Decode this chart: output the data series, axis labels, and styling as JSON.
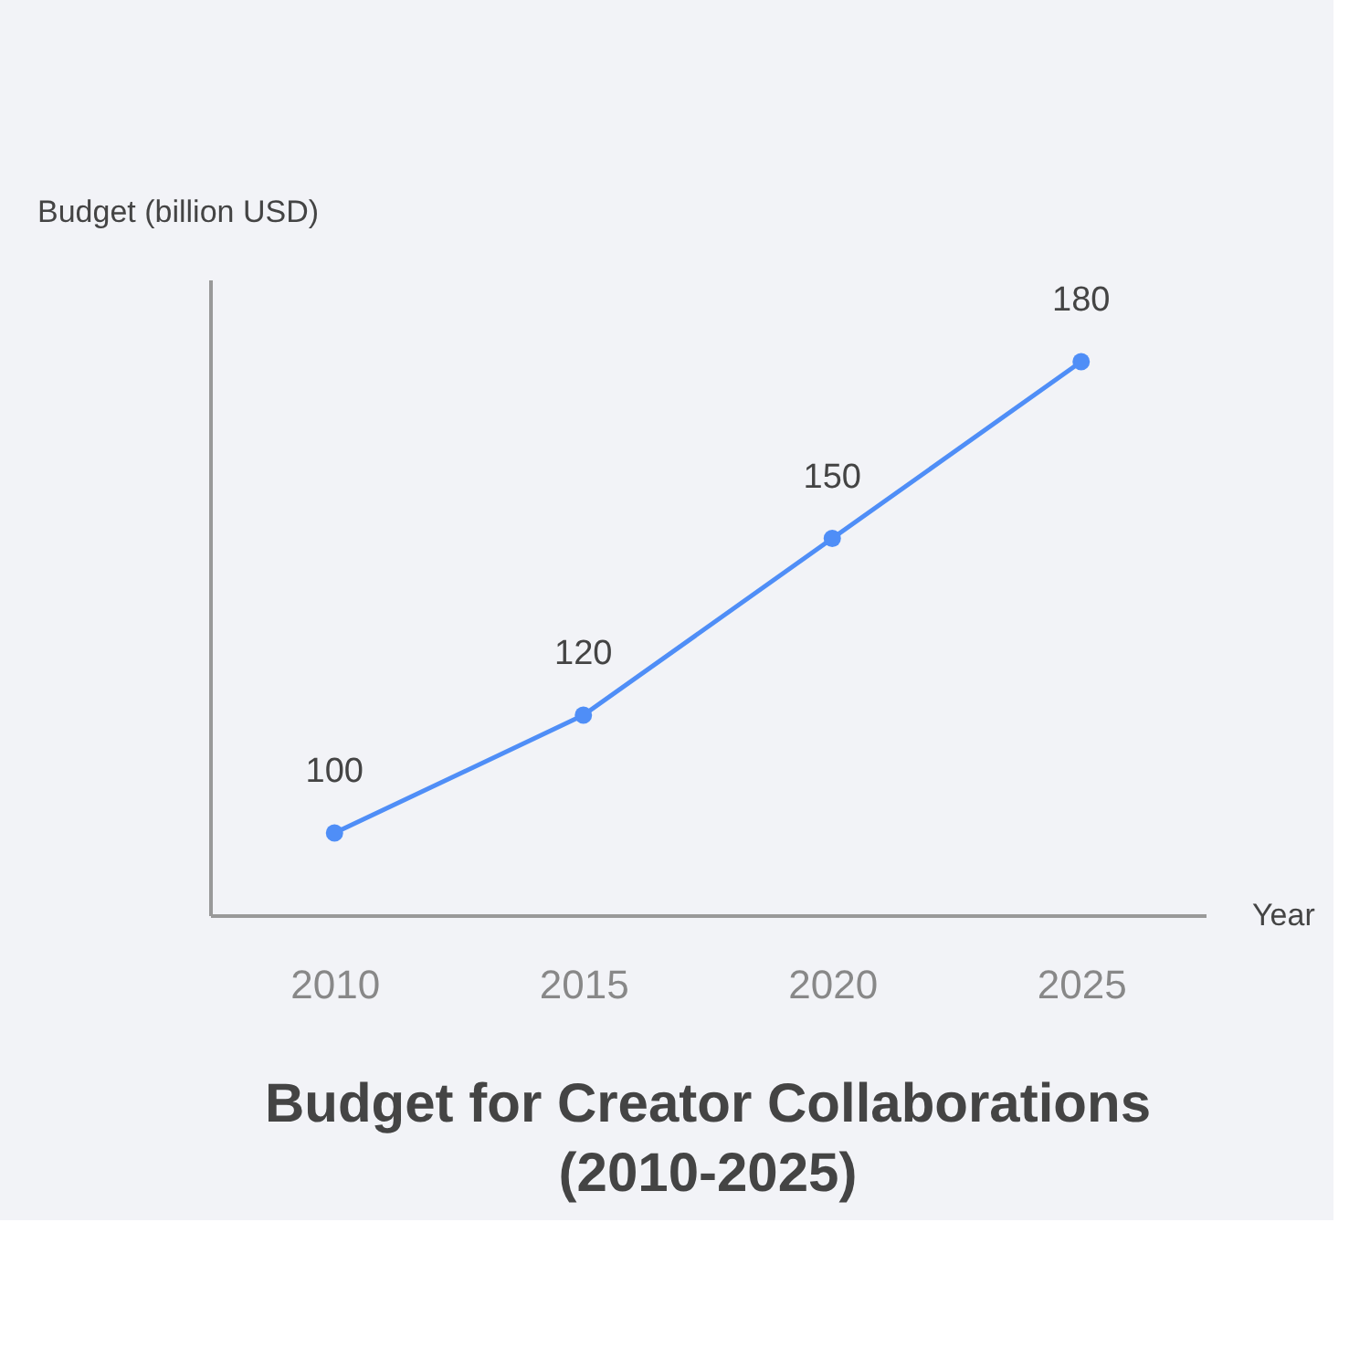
{
  "chart_data": {
    "type": "line",
    "title": "Budget for Creator Collaborations (2010-2025)",
    "xlabel": "Year",
    "ylabel": "Budget (billion USD)",
    "categories": [
      "2010",
      "2015",
      "2020",
      "2025"
    ],
    "series": [
      {
        "color": "#4f8ef7",
        "values": [
          100,
          120,
          150,
          180
        ]
      }
    ],
    "data_labels": true,
    "marker": "circle",
    "grid": false,
    "legend": false,
    "tick_labels": "x"
  }
}
